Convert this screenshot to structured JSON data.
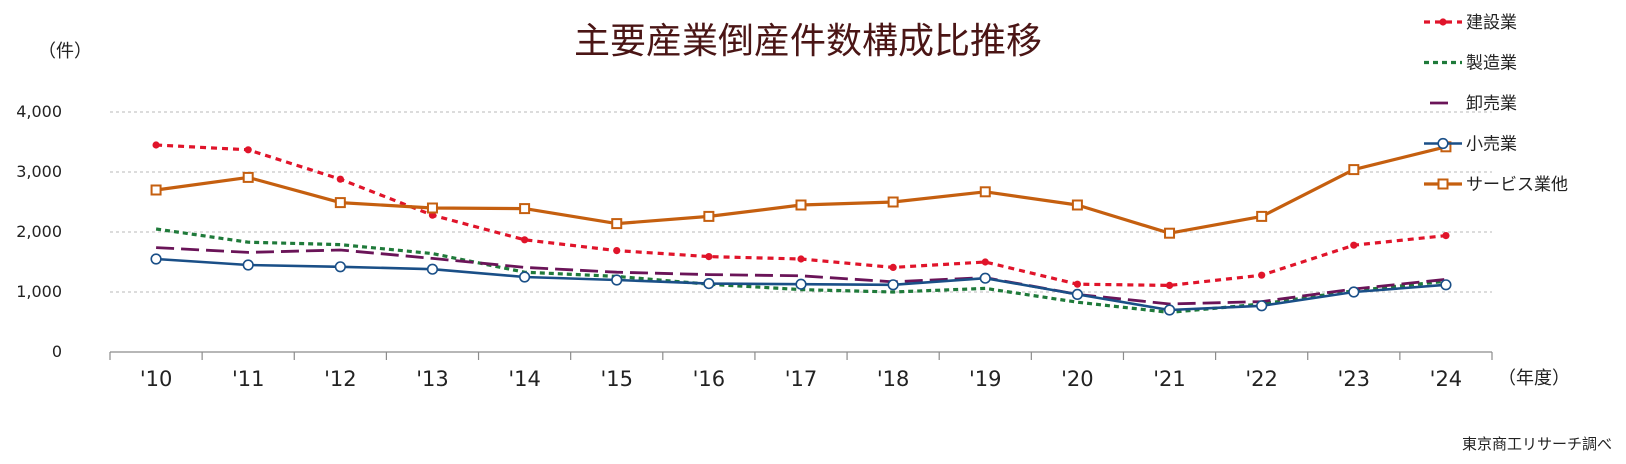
{
  "chart_data": {
    "type": "line",
    "title": "主要産業倒産件数構成比推移",
    "ylabel": "（件）",
    "xlabel": "（年度）",
    "source": "東京商工リサーチ調べ",
    "categories": [
      "'10",
      "'11",
      "'12",
      "'13",
      "'14",
      "'15",
      "'16",
      "'17",
      "'18",
      "'19",
      "'20",
      "'21",
      "'22",
      "'23",
      "'24"
    ],
    "ylim": [
      0,
      4000
    ],
    "yticks": [
      0,
      1000,
      2000,
      3000,
      4000
    ],
    "ytick_labels": [
      "0",
      "1,000",
      "2,000",
      "3,000",
      "4,000"
    ],
    "grid": true,
    "legend_position": "right",
    "series": [
      {
        "name": "建設業",
        "color": "#e0142a",
        "style": "dotted-dot",
        "values": [
          3450,
          3370,
          2880,
          2280,
          1870,
          1690,
          1590,
          1550,
          1410,
          1500,
          1130,
          1110,
          1280,
          1780,
          1940
        ]
      },
      {
        "name": "製造業",
        "color": "#1f7a3a",
        "style": "short-dash",
        "values": [
          2050,
          1830,
          1790,
          1640,
          1330,
          1260,
          1130,
          1040,
          1000,
          1060,
          830,
          660,
          800,
          1020,
          1180
        ]
      },
      {
        "name": "卸売業",
        "color": "#6a1458",
        "style": "long-dash",
        "values": [
          1740,
          1660,
          1700,
          1560,
          1410,
          1330,
          1290,
          1270,
          1170,
          1240,
          960,
          800,
          840,
          1050,
          1210
        ]
      },
      {
        "name": "小売業",
        "color": "#1a4f87",
        "style": "circle",
        "values": [
          1550,
          1450,
          1420,
          1380,
          1250,
          1200,
          1140,
          1130,
          1120,
          1230,
          960,
          700,
          770,
          1000,
          1120
        ]
      },
      {
        "name": "サービス業他",
        "color": "#c55f0f",
        "style": "square",
        "values": [
          2700,
          2910,
          2490,
          2400,
          2390,
          2140,
          2260,
          2450,
          2500,
          2670,
          2450,
          1980,
          2260,
          3040,
          3420
        ]
      }
    ]
  }
}
